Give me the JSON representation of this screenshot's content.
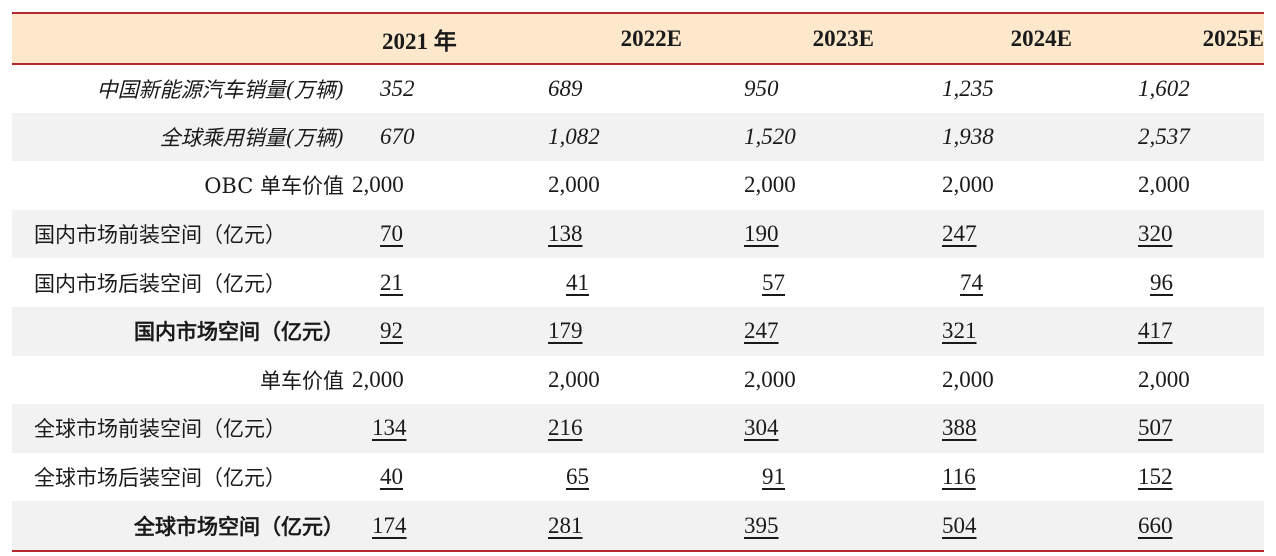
{
  "table": {
    "headers": [
      "",
      "2021 年",
      "2022E",
      "2023E",
      "2024E",
      "2025E"
    ],
    "rows": [
      {
        "label": "中国新能源汽车销量(万辆)",
        "values": [
          "352",
          "689",
          "950",
          "1,235",
          "1,602"
        ]
      },
      {
        "label": "全球乘用销量(万辆)",
        "values": [
          "670",
          "1,082",
          "1,520",
          "1,938",
          "2,537"
        ]
      },
      {
        "label": "OBC 单车价值",
        "values": [
          "2,000",
          "2,000",
          "2,000",
          "2,000",
          "2,000"
        ]
      },
      {
        "label": "国内市场前装空间（亿元）",
        "values": [
          "70",
          "138",
          "190",
          "247",
          "320"
        ]
      },
      {
        "label": "国内市场后装空间（亿元）",
        "values": [
          "21",
          "41",
          "57",
          "74",
          "96"
        ]
      },
      {
        "label": "国内市场空间（亿元）",
        "values": [
          "92",
          "179",
          "247",
          "321",
          "417"
        ]
      },
      {
        "label": "单车价值",
        "values": [
          "2,000",
          "2,000",
          "2,000",
          "2,000",
          "2,000"
        ]
      },
      {
        "label": "全球市场前装空间（亿元）",
        "values": [
          "134",
          "216",
          "304",
          "388",
          "507"
        ]
      },
      {
        "label": "全球市场后装空间（亿元）",
        "values": [
          "40",
          "65",
          "91",
          "116",
          "152"
        ]
      },
      {
        "label": "全球市场空间（亿元）",
        "values": [
          "174",
          "281",
          "395",
          "504",
          "660"
        ]
      }
    ]
  },
  "colors": {
    "rule": "#b5282b",
    "header_bg": "#fde8cc",
    "stripe_bg": "#f2f2f2"
  }
}
